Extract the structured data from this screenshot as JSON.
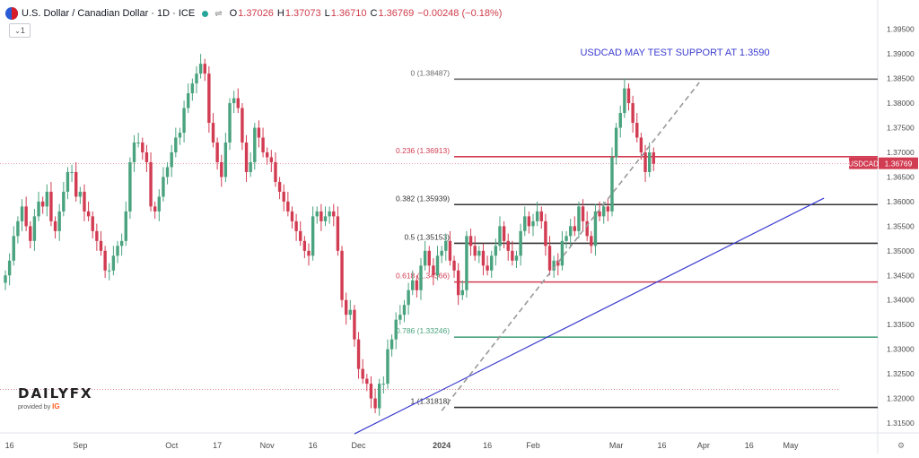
{
  "header": {
    "symbol_title": "U.S. Dollar / Canadian Dollar · 1D · ICE",
    "icon_flag": "usd-cad-flag-icon",
    "icon_status": "market-open-dot-icon",
    "icon_compare": "compare-icon",
    "ohlc": {
      "o_label": "O",
      "o": "1.37026",
      "h_label": "H",
      "h": "1.37073",
      "l_label": "L",
      "l": "1.36710",
      "c_label": "C",
      "c": "1.36769",
      "change": "−0.00248 (−0.18%)"
    },
    "indicator_toggle": "1"
  },
  "logo": {
    "brand": "DAILYFX",
    "provided_by": "provided by",
    "ig": "IG"
  },
  "colors": {
    "up": "#4aa37f",
    "down": "#d23c52",
    "fib_black": "#333333",
    "fib_red": "#d23c52",
    "fib_green": "#4aa37f",
    "fib_top": "#6b6b6b",
    "trendline": "#3d3dd1",
    "dashed": "#999999",
    "badge": "#d23c52"
  },
  "chart_data": {
    "type": "candlestick",
    "title": "USDCAD MAY TEST SUPPORT AT 1.3590",
    "symbol": "USDCAD",
    "price_label": "1.36769",
    "ylim": [
      1.313,
      1.3995
    ],
    "y_ticks": [
      1.315,
      1.32,
      1.325,
      1.33,
      1.335,
      1.34,
      1.345,
      1.35,
      1.355,
      1.36,
      1.365,
      1.37,
      1.375,
      1.38,
      1.385,
      1.39,
      1.395
    ],
    "y_tick_labels": [
      "1.31500",
      "1.32000",
      "1.32500",
      "1.33000",
      "1.33500",
      "1.34000",
      "1.34500",
      "1.35000",
      "1.35500",
      "1.36000",
      "1.36500",
      "1.37000",
      "1.37500",
      "1.38000",
      "1.38500",
      "1.39000",
      "1.39500"
    ],
    "x_labels": [
      {
        "label": "16",
        "i": 1
      },
      {
        "label": "Sep",
        "i": 18
      },
      {
        "label": "Oct",
        "i": 40
      },
      {
        "label": "17",
        "i": 51
      },
      {
        "label": "Nov",
        "i": 63
      },
      {
        "label": "16",
        "i": 74
      },
      {
        "label": "Dec",
        "i": 85
      },
      {
        "label": "2024",
        "i": 105
      },
      {
        "label": "16",
        "i": 116
      },
      {
        "label": "Feb",
        "i": 127
      },
      {
        "label": "Mar",
        "i": 147
      },
      {
        "label": "16",
        "i": 158
      },
      {
        "label": "Apr",
        "i": 168
      },
      {
        "label": "16",
        "i": 179
      },
      {
        "label": "May",
        "i": 189
      }
    ],
    "close": [
      1.345,
      1.348,
      1.353,
      1.356,
      1.359,
      1.355,
      1.352,
      1.357,
      1.36,
      1.359,
      1.362,
      1.356,
      1.354,
      1.358,
      1.362,
      1.366,
      1.366,
      1.361,
      1.362,
      1.358,
      1.357,
      1.354,
      1.352,
      1.35,
      1.346,
      1.346,
      1.349,
      1.351,
      1.352,
      1.358,
      1.368,
      1.372,
      1.372,
      1.37,
      1.368,
      1.359,
      1.358,
      1.361,
      1.365,
      1.367,
      1.37,
      1.373,
      1.374,
      1.379,
      1.382,
      1.384,
      1.386,
      1.388,
      1.386,
      1.376,
      1.372,
      1.368,
      1.365,
      1.372,
      1.38,
      1.381,
      1.379,
      1.372,
      1.366,
      1.368,
      1.375,
      1.373,
      1.37,
      1.369,
      1.368,
      1.364,
      1.362,
      1.36,
      1.358,
      1.356,
      1.354,
      1.352,
      1.35,
      1.349,
      1.357,
      1.358,
      1.356,
      1.357,
      1.358,
      1.357,
      1.35,
      1.34,
      1.337,
      1.338,
      1.332,
      1.326,
      1.324,
      1.323,
      1.32,
      1.318,
      1.323,
      1.323,
      1.33,
      1.332,
      1.336,
      1.337,
      1.339,
      1.342,
      1.344,
      1.342,
      1.347,
      1.35,
      1.347,
      1.345,
      1.349,
      1.35,
      1.352,
      1.348,
      1.346,
      1.341,
      1.342,
      1.353,
      1.351,
      1.349,
      1.35,
      1.347,
      1.346,
      1.349,
      1.351,
      1.355,
      1.352,
      1.35,
      1.348,
      1.349,
      1.354,
      1.357,
      1.355,
      1.356,
      1.358,
      1.356,
      1.351,
      1.346,
      1.348,
      1.347,
      1.352,
      1.353,
      1.355,
      1.354,
      1.359,
      1.356,
      1.353,
      1.351,
      1.358,
      1.357,
      1.359,
      1.358,
      1.369,
      1.375,
      1.378,
      1.383,
      1.38,
      1.376,
      1.373,
      1.37,
      1.366,
      1.37,
      1.3677
    ],
    "fib_levels": [
      {
        "label": "0 (1.38487)",
        "value": 1.38487,
        "color": "fib_top"
      },
      {
        "label": "0.236 (1.36913)",
        "value": 1.36913,
        "color": "fib_red"
      },
      {
        "label": "0.382 (1.35939)",
        "value": 1.35939,
        "color": "fib_black"
      },
      {
        "label": "0.5 (1.35153)",
        "value": 1.35153,
        "color": "fib_black"
      },
      {
        "label": "0.618 (1.34366)",
        "value": 1.34366,
        "color": "fib_red"
      },
      {
        "label": "0.786 (1.33246)",
        "value": 1.33246,
        "color": "fib_green"
      },
      {
        "label": "1 (1.31818)",
        "value": 1.31818,
        "color": "fib_black"
      }
    ],
    "trendline": {
      "from": {
        "i": 84,
        "v": 1.3128
      },
      "to": {
        "i": 197,
        "v": 1.3607
      }
    },
    "dashed_line": {
      "from": {
        "i": 105,
        "v": 1.3175
      },
      "to": {
        "i": 167,
        "v": 1.3842
      }
    }
  }
}
